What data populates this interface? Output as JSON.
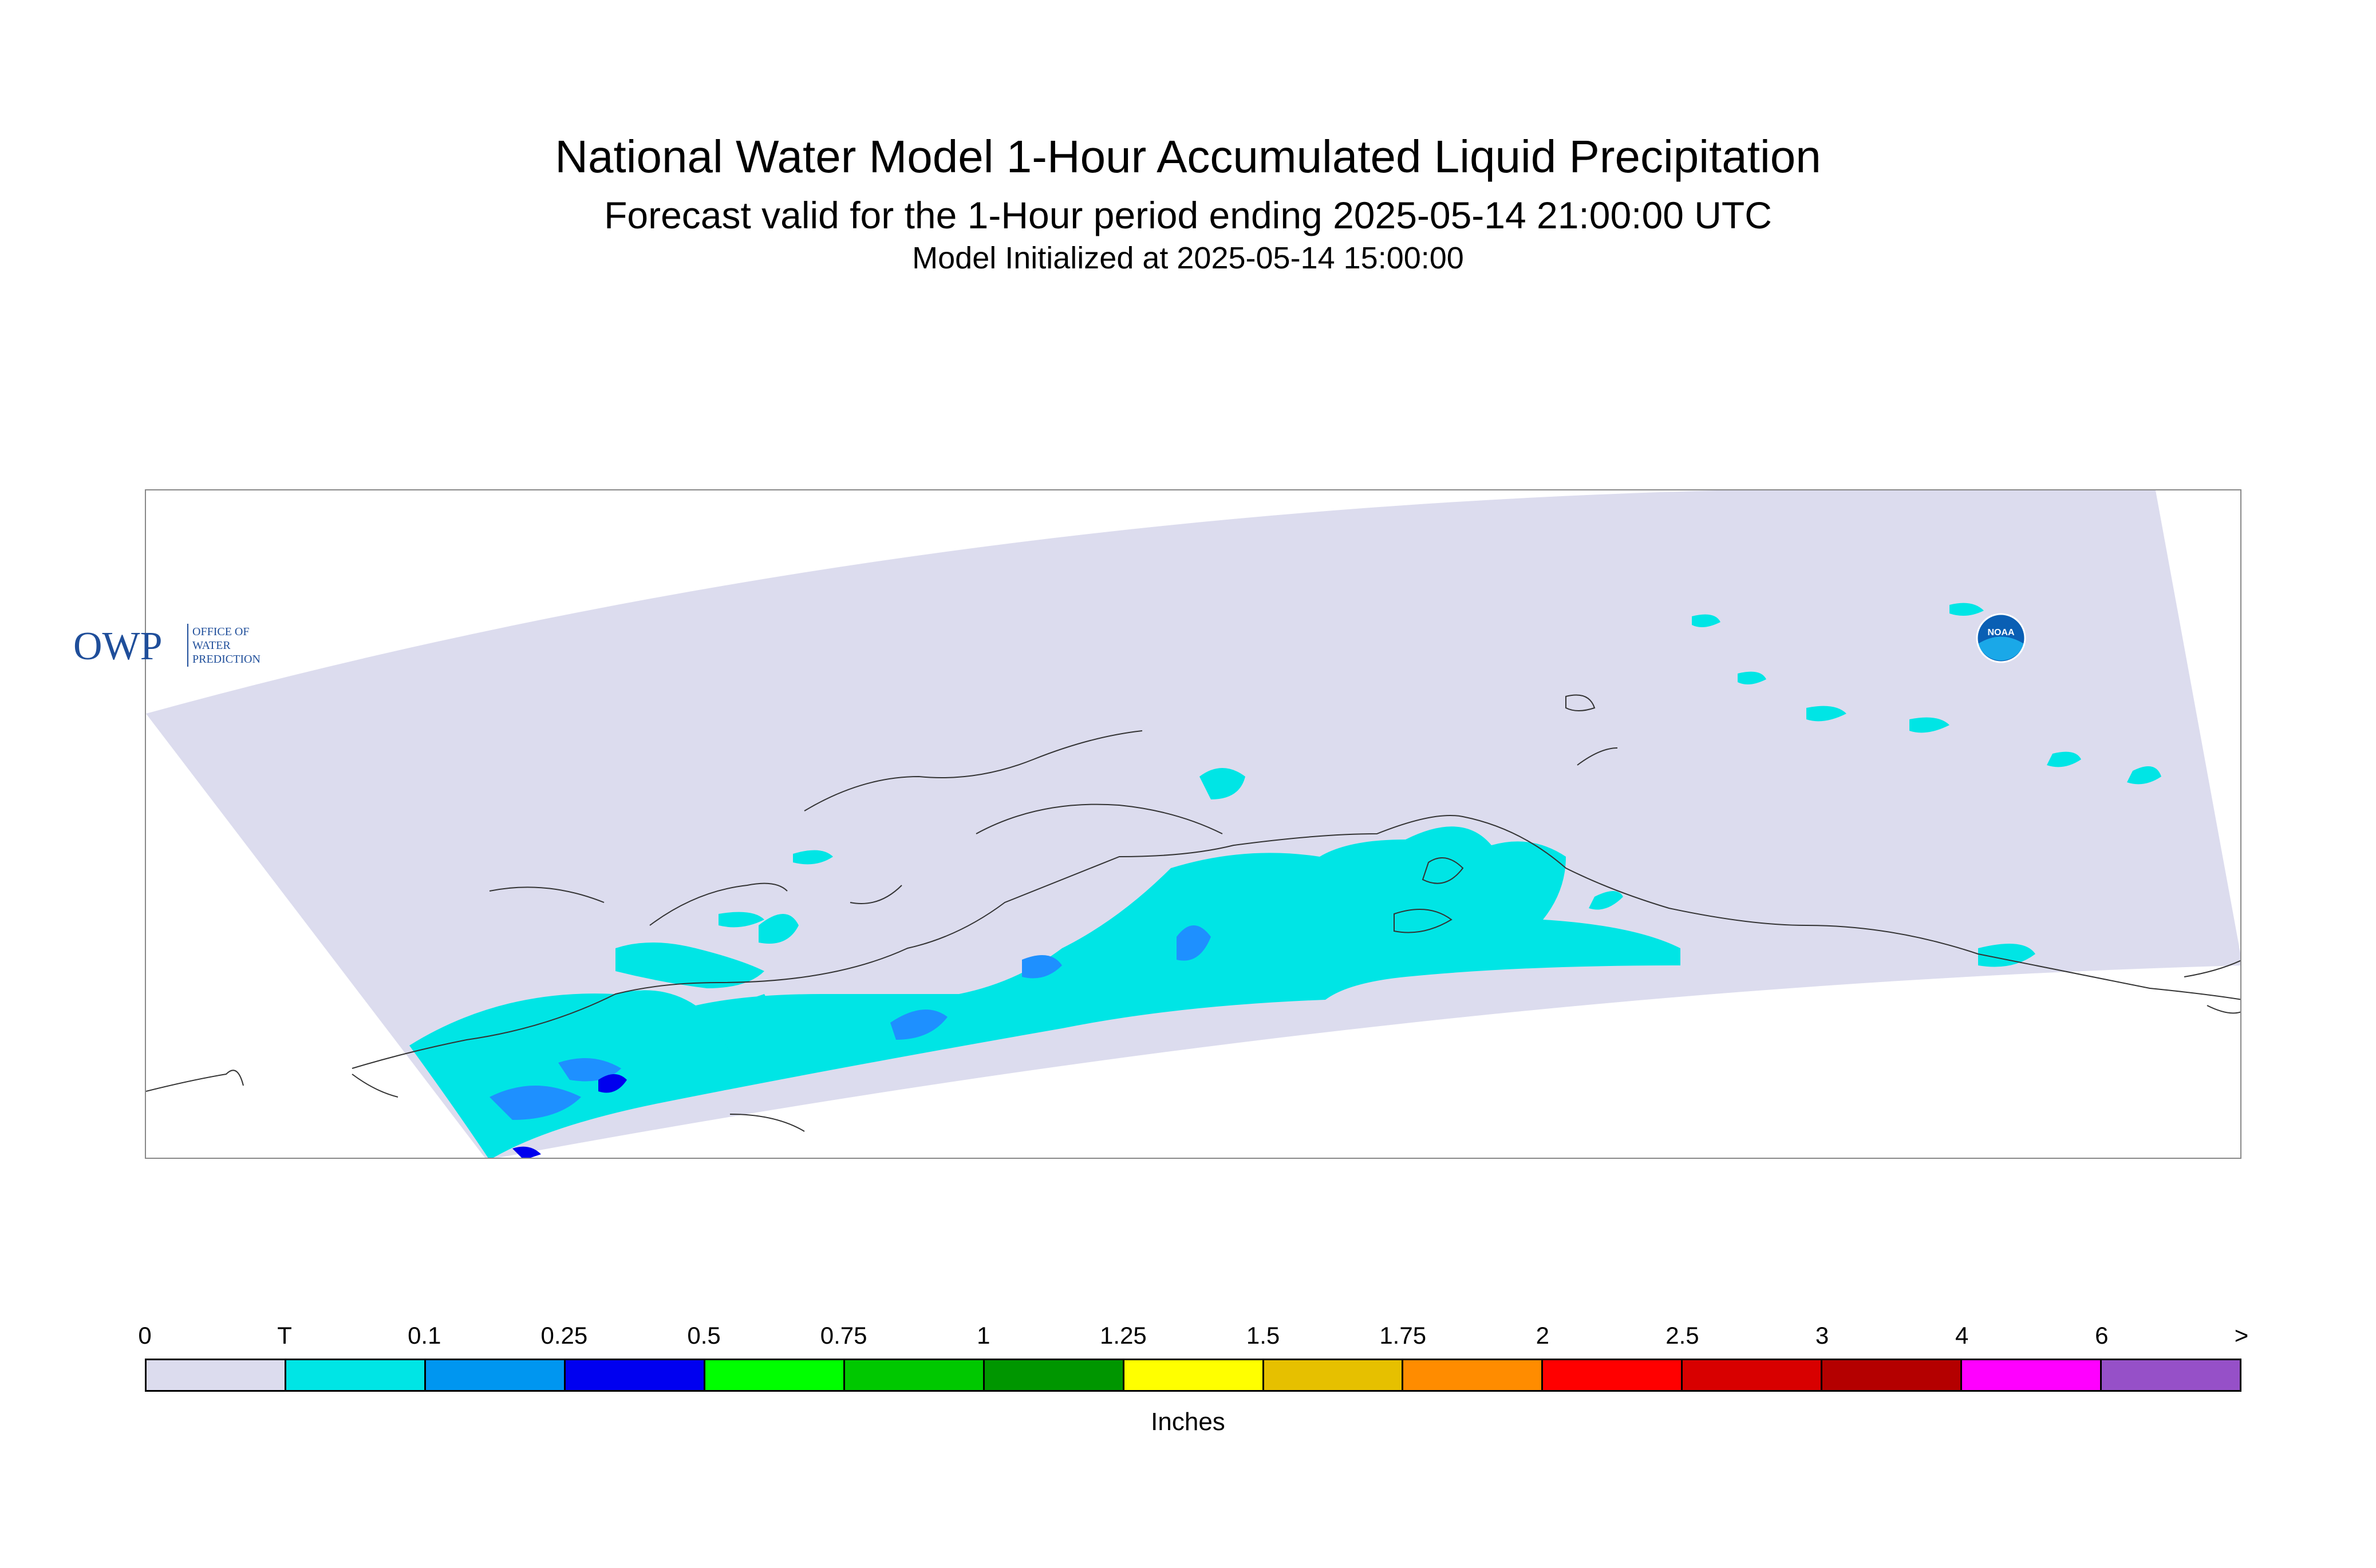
{
  "header": {
    "title": "National Water Model 1-Hour Accumulated Liquid Precipitation",
    "subtitle": "Forecast valid for the 1-Hour period ending 2025-05-14 21:00:00 UTC",
    "init": "Model Initialized at 2025-05-14 15:00:00"
  },
  "logos": {
    "owp_text": "OWP",
    "owp_side": [
      "OFFICE OF",
      "WATER",
      "PREDICTION"
    ],
    "noaa_text": "NOAA"
  },
  "map": {
    "domain_color": "#dcdcee",
    "trace_color": "#00e5e5",
    "light_color": "#1e90ff",
    "heavy_color": "#0000ee",
    "coast_color": "#333333"
  },
  "legend": {
    "units": "Inches",
    "ticks": [
      "0",
      "T",
      "0.1",
      "0.25",
      "0.5",
      "0.75",
      "1",
      "1.25",
      "1.5",
      "1.75",
      "2",
      "2.5",
      "3",
      "4",
      "6",
      ">"
    ],
    "colors": [
      "#dcdcee",
      "#00e5e5",
      "#0096f0",
      "#0000f0",
      "#00ff00",
      "#00c800",
      "#009600",
      "#ffff00",
      "#e6c000",
      "#ff8c00",
      "#ff0000",
      "#d80000",
      "#b40000",
      "#ff00ff",
      "#9650c8"
    ]
  }
}
